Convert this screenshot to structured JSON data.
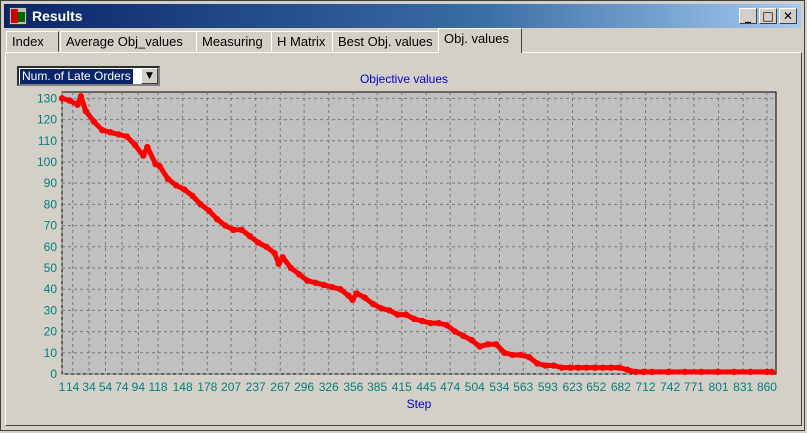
{
  "window": {
    "title": "Results",
    "minimize_glyph": "_",
    "maximize_glyph": "□",
    "close_glyph": "✕"
  },
  "tabs": [
    {
      "label": "Index"
    },
    {
      "label": "Average Obj_values"
    },
    {
      "label": "Measuring"
    },
    {
      "label": "H Matrix"
    },
    {
      "label": "Best Obj. values"
    },
    {
      "label": "Obj. values",
      "active": true
    }
  ],
  "objective_select": {
    "value": "Num. of Late Orders",
    "arrow": "▼"
  },
  "colors": {
    "series": "#ff0000",
    "axis_text": "#008080",
    "title_text": "#0000cc",
    "plot_bg": "#c0c0c0"
  },
  "chart_data": {
    "type": "scatter",
    "title": "Objective values",
    "xlabel": "Step",
    "ylabel": "",
    "grid": true,
    "xlim": [
      1,
      871
    ],
    "ylim": [
      0,
      133
    ],
    "x_ticks": [
      1,
      14,
      34,
      54,
      74,
      94,
      118,
      148,
      178,
      207,
      237,
      267,
      296,
      326,
      356,
      385,
      415,
      445,
      474,
      504,
      534,
      563,
      593,
      623,
      652,
      682,
      712,
      742,
      771,
      801,
      831,
      860
    ],
    "y_ticks": [
      0,
      10,
      20,
      30,
      40,
      50,
      60,
      70,
      80,
      90,
      100,
      110,
      120,
      130
    ],
    "series": [
      {
        "x": [
          1,
          10,
          20,
          24,
          30,
          40,
          50,
          60,
          70,
          80,
          90,
          100,
          105,
          115,
          120,
          130,
          140,
          150,
          160,
          170,
          180,
          190,
          200,
          210,
          220,
          230,
          240,
          250,
          260,
          265,
          270,
          280,
          290,
          300,
          310,
          320,
          330,
          340,
          350,
          355,
          360,
          370,
          380,
          390,
          400,
          410,
          420,
          430,
          440,
          450,
          460,
          470,
          480,
          490,
          500,
          510,
          520,
          530,
          540,
          550,
          560,
          570,
          580,
          590,
          600,
          610,
          620,
          630,
          640,
          650,
          660,
          670,
          680,
          690,
          700,
          710,
          720,
          740,
          760,
          780,
          800,
          820,
          840,
          860,
          866
        ],
        "y": [
          130,
          129,
          127,
          131,
          124,
          119,
          115,
          114,
          113,
          112,
          108,
          103,
          107,
          99,
          98,
          92,
          89,
          87,
          84,
          80,
          77,
          73,
          70,
          68,
          68,
          65,
          62,
          60,
          57,
          52,
          55,
          50,
          47,
          44,
          43,
          42,
          41,
          40,
          37,
          35,
          38,
          36,
          33,
          31,
          30,
          28,
          28,
          26,
          25,
          24,
          24,
          23,
          20,
          18,
          16,
          13,
          14,
          14,
          10,
          9,
          9,
          8,
          5,
          4,
          4,
          3,
          3,
          3,
          3,
          3,
          3,
          3,
          3,
          2,
          1,
          1,
          1,
          1,
          1,
          1,
          1,
          1,
          1,
          1,
          1
        ]
      }
    ]
  }
}
